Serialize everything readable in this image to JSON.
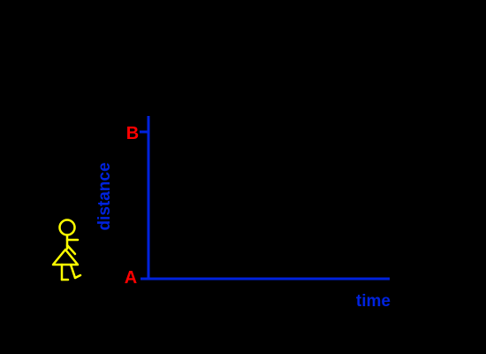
{
  "diagram": {
    "point_start_label": "A",
    "point_end_label": "B",
    "y_axis_label": "distance",
    "x_axis_label": "time",
    "figure": "stick-figure-girl-icon"
  },
  "colors": {
    "background": "#000000",
    "axis": "#0022dd",
    "axis_label": "#0022dd",
    "point_label": "#ff0000",
    "figure": "#ffff00"
  }
}
